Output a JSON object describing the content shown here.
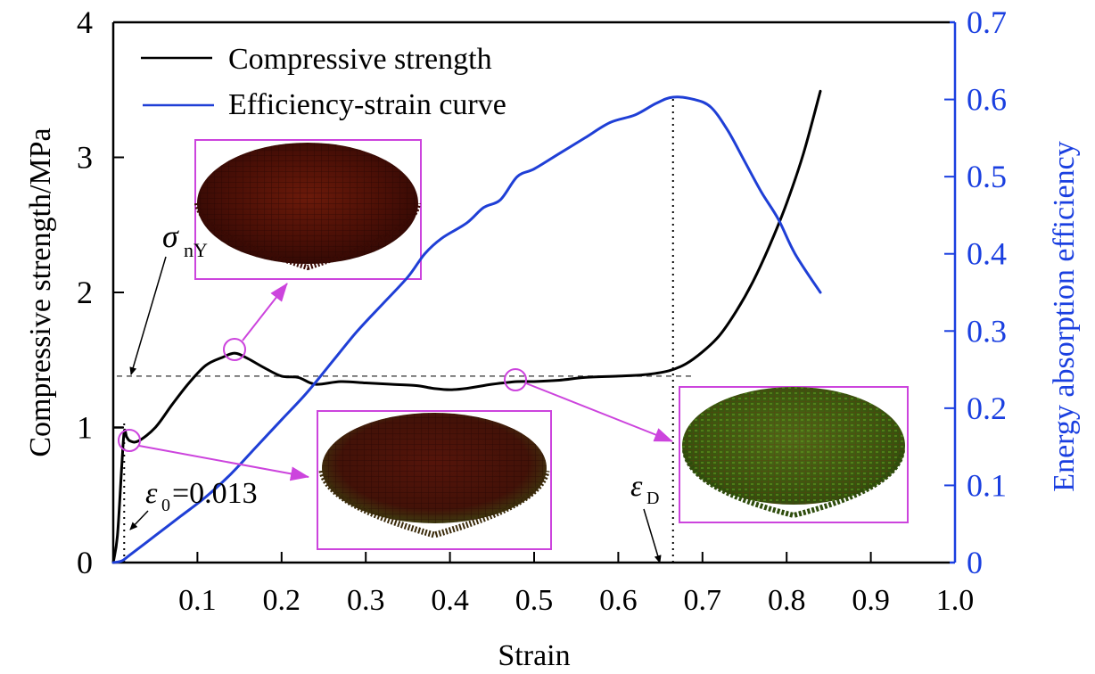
{
  "chart_data": {
    "type": "line",
    "title": "",
    "xlabel": "Strain",
    "ylabel_left": "Compressive strength/MPa",
    "ylabel_right": "Energy absorption efficiency",
    "xlim": [
      0,
      1.0
    ],
    "ylim_left": [
      0,
      4
    ],
    "ylim_right": [
      0,
      0.7
    ],
    "x_ticks": [
      0.1,
      0.2,
      0.3,
      0.4,
      0.5,
      0.6,
      0.7,
      0.8,
      0.9,
      1.0
    ],
    "x_tick_labels": [
      "0.1",
      "0.2",
      "0.3",
      "0.4",
      "0.5",
      "0.6",
      "0.7",
      "0.8",
      "0.9",
      "1.0"
    ],
    "y_left_ticks": [
      0,
      1,
      2,
      3,
      4
    ],
    "y_left_tick_labels": [
      "0",
      "1",
      "2",
      "3",
      "4"
    ],
    "y_right_ticks": [
      0,
      0.1,
      0.2,
      0.3,
      0.4,
      0.5,
      0.6,
      0.7
    ],
    "y_right_tick_labels": [
      "0",
      "0.1",
      "0.2",
      "0.3",
      "0.4",
      "0.5",
      "0.6",
      "0.7"
    ],
    "grid": false,
    "legend_position": "top-left",
    "colors": {
      "strength": "#000000",
      "efficiency": "#1f3fd6",
      "callout": "#cc44dd",
      "right_axis": "#1a3fe0",
      "dashed": "#555555"
    },
    "series": [
      {
        "name": "Compressive strength",
        "axis": "left",
        "color": "#000000",
        "x": [
          0.0,
          0.005,
          0.01,
          0.013,
          0.016,
          0.02,
          0.03,
          0.05,
          0.07,
          0.09,
          0.11,
          0.13,
          0.145,
          0.16,
          0.18,
          0.2,
          0.22,
          0.24,
          0.27,
          0.3,
          0.33,
          0.36,
          0.38,
          0.4,
          0.42,
          0.45,
          0.48,
          0.5,
          0.53,
          0.56,
          0.6,
          0.63,
          0.66,
          0.68,
          0.7,
          0.72,
          0.74,
          0.76,
          0.78,
          0.8,
          0.82,
          0.84
        ],
        "y": [
          0.0,
          0.2,
          0.7,
          0.97,
          0.93,
          0.9,
          0.9,
          1.0,
          1.17,
          1.33,
          1.46,
          1.52,
          1.55,
          1.51,
          1.44,
          1.38,
          1.37,
          1.32,
          1.34,
          1.33,
          1.32,
          1.31,
          1.29,
          1.28,
          1.29,
          1.32,
          1.34,
          1.34,
          1.35,
          1.37,
          1.38,
          1.39,
          1.42,
          1.47,
          1.56,
          1.68,
          1.86,
          2.08,
          2.35,
          2.66,
          3.03,
          3.49
        ]
      },
      {
        "name": "Efficiency-strain curve",
        "axis": "right",
        "color": "#1f3fd6",
        "x": [
          0.0,
          0.01,
          0.02,
          0.05,
          0.08,
          0.11,
          0.14,
          0.17,
          0.2,
          0.23,
          0.26,
          0.29,
          0.32,
          0.35,
          0.37,
          0.39,
          0.42,
          0.44,
          0.46,
          0.48,
          0.5,
          0.53,
          0.56,
          0.59,
          0.62,
          0.645,
          0.665,
          0.69,
          0.71,
          0.73,
          0.75,
          0.77,
          0.79,
          0.81,
          0.84
        ],
        "y": [
          0.0,
          0.002,
          0.01,
          0.035,
          0.06,
          0.085,
          0.115,
          0.15,
          0.185,
          0.22,
          0.26,
          0.3,
          0.335,
          0.37,
          0.4,
          0.42,
          0.44,
          0.46,
          0.47,
          0.5,
          0.51,
          0.53,
          0.55,
          0.57,
          0.58,
          0.595,
          0.603,
          0.6,
          0.59,
          0.56,
          0.52,
          0.48,
          0.445,
          0.4,
          0.35
        ]
      }
    ],
    "reference_lines": [
      {
        "name": "sigma-nY-line",
        "type": "horizontal",
        "axis": "left",
        "value": 1.38,
        "x_range": [
          0.0,
          0.69
        ],
        "style": "dashed"
      },
      {
        "name": "epsilon-0-line",
        "type": "vertical",
        "value": 0.013,
        "y_range_left": [
          0,
          1.05
        ],
        "style": "dotted"
      },
      {
        "name": "epsilon-D-line",
        "type": "vertical",
        "value": 0.665,
        "y_range_right": [
          0,
          0.603
        ],
        "style": "dotted"
      }
    ],
    "annotations": [
      {
        "id": "sigma",
        "symbol": "σ",
        "subscript": "nY"
      },
      {
        "id": "eps0",
        "symbol": "ε",
        "subscript": "0",
        "suffix": "=0.013"
      },
      {
        "id": "epsD",
        "symbol": "ε",
        "subscript": "D"
      }
    ],
    "insets": [
      {
        "name": "inset-peak-state",
        "description": "compressed disk model at yield peak",
        "points_to_strain": 0.145,
        "dominant_color": "#5a1208"
      },
      {
        "name": "inset-initial-state",
        "description": "compressed disk model at initial yield",
        "points_to_strain": 0.013,
        "dominant_color": "#4d1208"
      },
      {
        "name": "inset-plateau-state",
        "description": "compressed disk model at plateau stage",
        "points_to_strain": 0.48,
        "dominant_color": "#3f6a12"
      }
    ]
  }
}
